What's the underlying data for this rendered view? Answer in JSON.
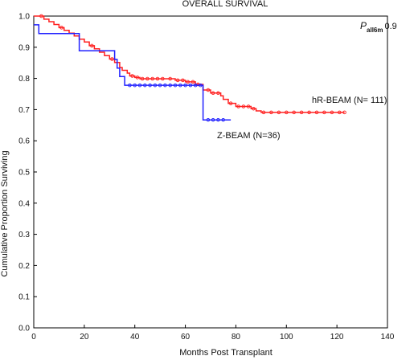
{
  "chart_data": {
    "type": "line",
    "title": "OVERALL SURVIVAL",
    "xlabel": "Months Post Transplant",
    "ylabel": "Cumulative Proportion Surviving",
    "xlim": [
      0,
      140
    ],
    "ylim": [
      0.0,
      1.0
    ],
    "xticks": [
      0,
      20,
      40,
      60,
      80,
      100,
      120,
      140
    ],
    "yticks": [
      0.0,
      0.1,
      0.2,
      0.3,
      0.4,
      0.5,
      0.6,
      0.7,
      0.8,
      0.9,
      1.0
    ],
    "x_tick_labels": [
      "0",
      "20",
      "40",
      "60",
      "80",
      "100",
      "120",
      "140"
    ],
    "y_tick_labels": [
      "0.0",
      "0.1",
      "0.2",
      "0.3",
      "0.4",
      "0.5",
      "0.6",
      "0.7",
      "0.8",
      "0.9",
      "1.0"
    ],
    "grid": false,
    "pvalue": {
      "label": "P",
      "subscript": "all6m",
      "value": "0.9"
    },
    "series": [
      {
        "name": "hR-BEAM (N= 111)",
        "color": "#ff2020",
        "steps": [
          [
            0,
            1.0
          ],
          [
            4,
            0.99
          ],
          [
            6,
            0.982
          ],
          [
            8,
            0.973
          ],
          [
            10,
            0.963
          ],
          [
            12,
            0.954
          ],
          [
            14,
            0.945
          ],
          [
            16,
            0.936
          ],
          [
            18,
            0.926
          ],
          [
            20,
            0.917
          ],
          [
            22,
            0.905
          ],
          [
            24,
            0.895
          ],
          [
            26,
            0.884
          ],
          [
            28,
            0.873
          ],
          [
            30,
            0.862
          ],
          [
            32,
            0.851
          ],
          [
            34,
            0.835
          ],
          [
            35,
            0.826
          ],
          [
            37,
            0.817
          ],
          [
            38,
            0.808
          ],
          [
            40,
            0.803
          ],
          [
            42,
            0.799
          ],
          [
            56,
            0.794
          ],
          [
            60,
            0.789
          ],
          [
            64,
            0.781
          ],
          [
            67,
            0.763
          ],
          [
            70,
            0.753
          ],
          [
            74,
            0.744
          ],
          [
            75,
            0.733
          ],
          [
            77,
            0.72
          ],
          [
            80,
            0.71
          ],
          [
            86,
            0.703
          ],
          [
            88,
            0.696
          ],
          [
            90,
            0.691
          ]
        ],
        "end_x": 123,
        "censored_x": [
          3,
          11,
          23,
          31,
          39,
          41,
          43,
          45,
          47,
          49,
          51,
          54,
          57,
          59,
          61,
          63,
          65,
          69,
          71,
          73,
          78,
          81,
          83,
          85,
          87,
          91,
          94,
          97,
          100,
          103,
          106,
          109,
          112,
          115,
          118,
          121,
          123
        ]
      },
      {
        "name": "Z-BEAM (N=36)",
        "color": "#2020ff",
        "steps": [
          [
            0,
            0.972
          ],
          [
            2,
            0.944
          ],
          [
            18,
            0.889
          ],
          [
            32,
            0.861
          ],
          [
            33,
            0.833
          ],
          [
            34,
            0.806
          ],
          [
            36,
            0.778
          ],
          [
            67,
            0.667
          ]
        ],
        "end_x": 78,
        "censored_x": [
          38,
          40,
          42,
          44,
          46,
          48,
          50,
          52,
          54,
          56,
          58,
          60,
          62,
          64,
          66,
          69,
          71,
          73,
          75
        ]
      }
    ]
  }
}
